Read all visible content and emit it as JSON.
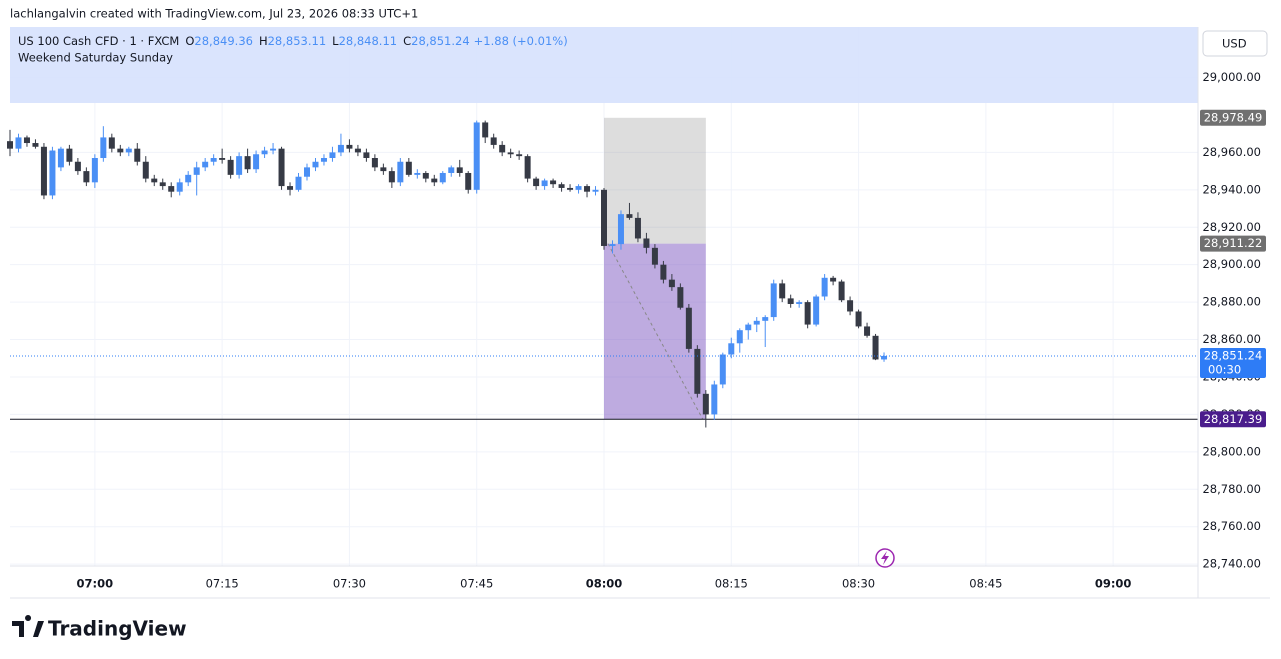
{
  "header": {
    "attribution": "lachlangalvin created with TradingView.com, Jul 23, 2026 08:33 UTC+1"
  },
  "legend": {
    "symbol": "US 100 Cash CFD · 1 · FXCM",
    "fields": [
      {
        "key": "O",
        "label": "28,849.36"
      },
      {
        "key": "H",
        "label": "28,853.11"
      },
      {
        "key": "L",
        "label": "28,848.11"
      },
      {
        "key": "C",
        "label": "28,851.24"
      }
    ],
    "change": "+1.88 (+0.01%)"
  },
  "chart_data": {
    "type": "candlestick",
    "currency": "USD",
    "session_label": "Weekend Saturday Sunday",
    "up_color": "#4a8ff5",
    "down_color": "#363a45",
    "grid": true,
    "xlim": [
      "06:50",
      "09:10"
    ],
    "xticks": [
      "07:00",
      "07:15",
      "07:30",
      "07:45",
      "08:00",
      "08:15",
      "08:30",
      "08:45",
      "09:00"
    ],
    "ylim": [
      28739,
      29027
    ],
    "yticks": [
      {
        "value": 28740,
        "label": "28,740.00"
      },
      {
        "value": 28760,
        "label": "28,760.00"
      },
      {
        "value": 28780,
        "label": "28,780.00"
      },
      {
        "value": 28800,
        "label": "28,800.00"
      },
      {
        "value": 28820,
        "label": "28,820.00"
      },
      {
        "value": 28840,
        "label": "28,840.00"
      },
      {
        "value": 28860,
        "label": "28,860.00"
      },
      {
        "value": 28880,
        "label": "28,880.00"
      },
      {
        "value": 28900,
        "label": "28,900.00"
      },
      {
        "value": 28920,
        "label": "28,920.00"
      },
      {
        "value": 28940,
        "label": "28,940.00"
      },
      {
        "value": 28960,
        "label": "28,960.00"
      },
      {
        "value": 29000,
        "label": "29,000.00"
      }
    ],
    "x": [
      "06:50",
      "06:51",
      "06:52",
      "06:53",
      "06:54",
      "06:55",
      "06:56",
      "06:57",
      "06:58",
      "06:59",
      "07:00",
      "07:01",
      "07:02",
      "07:03",
      "07:04",
      "07:05",
      "07:06",
      "07:07",
      "07:08",
      "07:09",
      "07:10",
      "07:11",
      "07:12",
      "07:13",
      "07:14",
      "07:15",
      "07:16",
      "07:17",
      "07:18",
      "07:19",
      "07:20",
      "07:21",
      "07:22",
      "07:23",
      "07:24",
      "07:25",
      "07:26",
      "07:27",
      "07:28",
      "07:29",
      "07:30",
      "07:31",
      "07:32",
      "07:33",
      "07:34",
      "07:35",
      "07:36",
      "07:37",
      "07:38",
      "07:39",
      "07:40",
      "07:41",
      "07:42",
      "07:43",
      "07:44",
      "07:45",
      "07:46",
      "07:47",
      "07:48",
      "07:49",
      "07:50",
      "07:51",
      "07:52",
      "07:53",
      "07:54",
      "07:55",
      "07:56",
      "07:57",
      "07:58",
      "07:59",
      "08:00",
      "08:01",
      "08:02",
      "08:03",
      "08:04",
      "08:05",
      "08:06",
      "08:07",
      "08:08",
      "08:09",
      "08:10",
      "08:11",
      "08:12",
      "08:13",
      "08:14",
      "08:15",
      "08:16",
      "08:17",
      "08:18",
      "08:19",
      "08:20",
      "08:21",
      "08:22",
      "08:23",
      "08:24",
      "08:25",
      "08:26",
      "08:27",
      "08:28",
      "08:29",
      "08:30",
      "08:31",
      "08:32",
      "08:33"
    ],
    "open": [
      28966,
      28962,
      28968,
      28965,
      28963,
      28937,
      28952,
      28962,
      28955,
      28950,
      28944,
      28957,
      28968,
      28962,
      28960,
      28962,
      28955,
      28946,
      28944,
      28942,
      28939,
      28944,
      28948,
      28952,
      28955,
      28957,
      28956,
      28948,
      28958,
      28951,
      28959,
      28961,
      28962,
      28942,
      28940,
      28947,
      28952,
      28955,
      28957,
      28960,
      28964,
      28962,
      28960,
      28957,
      28952,
      28950,
      28944,
      28955,
      28948,
      28949,
      28946,
      28944,
      28949,
      28952,
      28949,
      28940,
      28976,
      28968,
      28964,
      28960,
      28959,
      28958,
      28946,
      28942,
      28945,
      28943,
      28941,
      28940,
      28942,
      28939,
      28940,
      28910,
      28911,
      28927,
      28925,
      28914,
      28909,
      28900,
      28892,
      28888,
      28877,
      28855,
      28831,
      28820,
      28836,
      28852,
      28858,
      28865,
      28868,
      28870,
      28872,
      28890,
      28882,
      28879,
      28880,
      28868,
      28883,
      28893,
      28891,
      28881,
      28875,
      28867,
      28862,
      28849.36
    ],
    "high": [
      28972,
      28970,
      28969,
      28967,
      28965,
      28963,
      28963,
      28964,
      28957,
      28952,
      28959,
      28974,
      28970,
      28964,
      28963,
      28965,
      28958,
      28948,
      28946,
      28944,
      28946,
      28950,
      28955,
      28957,
      28959,
      28962,
      28958,
      28960,
      28962,
      28961,
      28963,
      28965,
      28963,
      28944,
      28949,
      28954,
      28957,
      28959,
      28963,
      28970,
      28967,
      28964,
      28962,
      28959,
      28954,
      28952,
      28957,
      28957,
      28951,
      28950,
      28948,
      28950,
      28953,
      28956,
      28950,
      28977,
      28977,
      28970,
      28966,
      28962,
      28961,
      28959,
      28947,
      28946,
      28946,
      28944,
      28943,
      28943,
      28943,
      28942,
      28941,
      28913,
      28929,
      28933,
      28928,
      28917,
      28911,
      28902,
      28895,
      28890,
      28879,
      28857,
      28833,
      28838,
      28853,
      28861,
      28866,
      28869,
      28872,
      28873,
      28892,
      28892,
      28884,
      28881,
      28881,
      28884,
      28895,
      28894,
      28892,
      28883,
      28876,
      28869,
      28863,
      28853.11
    ],
    "low": [
      28958,
      28960,
      28963,
      28962,
      28935,
      28935,
      28950,
      28953,
      28948,
      28942,
      28941,
      28955,
      28960,
      28958,
      28958,
      28953,
      28944,
      28942,
      28940,
      28936,
      28937,
      28942,
      28937,
      28950,
      28953,
      28954,
      28946,
      28946,
      28949,
      28949,
      28957,
      28959,
      28940,
      28937,
      28939,
      28945,
      28950,
      28953,
      28955,
      28958,
      28960,
      28958,
      28955,
      28950,
      28948,
      28941,
      28942,
      28947,
      28946,
      28944,
      28942,
      28943,
      28947,
      28947,
      28938,
      28938,
      28965,
      28962,
      28958,
      28957,
      28956,
      28944,
      28940,
      28940,
      28941,
      28939,
      28939,
      28938,
      28936,
      28937,
      28908,
      28906,
      28908,
      28924,
      28912,
      28906,
      28898,
      28890,
      28886,
      28876,
      28853,
      28829,
      28813,
      28817,
      28834,
      28850,
      28853,
      28860,
      28864,
      28856,
      28870,
      28880,
      28877,
      28877,
      28866,
      28867,
      28881,
      28889,
      28880,
      28873,
      28866,
      28861,
      28849,
      28848.11
    ],
    "close": [
      28962,
      28968,
      28965,
      28963,
      28937,
      28961,
      28962,
      28955,
      28950,
      28944,
      28957,
      28968,
      28962,
      28960,
      28962,
      28955,
      28946,
      28944,
      28942,
      28939,
      28944,
      28948,
      28952,
      28955,
      28957,
      28956,
      28948,
      28958,
      28951,
      28959,
      28961,
      28962,
      28942,
      28940,
      28947,
      28952,
      28955,
      28957,
      28960,
      28964,
      28962,
      28960,
      28957,
      28952,
      28950,
      28944,
      28955,
      28948,
      28949,
      28946,
      28944,
      28949,
      28952,
      28949,
      28940,
      28976,
      28968,
      28964,
      28960,
      28959,
      28958,
      28946,
      28942,
      28945,
      28943,
      28941,
      28940,
      28942,
      28939,
      28940,
      28910,
      28911,
      28927,
      28925,
      28914,
      28909,
      28900,
      28892,
      28888,
      28877,
      28855,
      28831,
      28820,
      28836,
      28852,
      28858,
      28865,
      28868,
      28870,
      28872,
      28890,
      28882,
      28879,
      28880,
      28868,
      28883,
      28893,
      28891,
      28881,
      28875,
      28867,
      28862,
      28849.36,
      28851.24
    ],
    "position": {
      "start": "08:00",
      "end": "08:12",
      "levels": [
        {
          "value": 28978.49,
          "label": "28,978.49",
          "color": "#707070"
        },
        {
          "value": 28911.22,
          "label": "28,911.22",
          "color": "#707070"
        },
        {
          "value": 28817.39,
          "label": "28,817.39",
          "color": "#4a1d8c"
        }
      ]
    },
    "last_price_label": "28,851.24",
    "last_price_color": "#2e7cf6",
    "countdown": "00:30"
  },
  "footer": {
    "logo": "TradingView"
  }
}
